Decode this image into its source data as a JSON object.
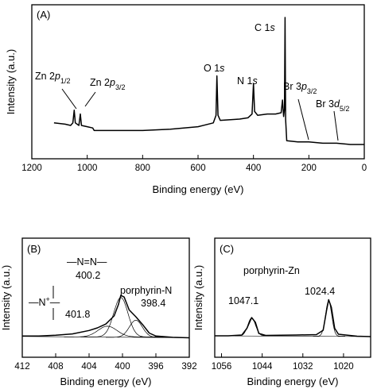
{
  "chart_data": [
    {
      "panel": "(A)",
      "type": "line",
      "xlabel": "Binding energy (eV)",
      "ylabel": "Intensity (a.u.)",
      "xlim": [
        1200,
        0
      ],
      "x_ticks": [
        "1200",
        "1000",
        "800",
        "600",
        "400",
        "200",
        "0"
      ],
      "series": [
        {
          "points": [
            [
              1120,
              0.17
            ],
            [
              1080,
              0.16
            ],
            [
              1060,
              0.15
            ],
            [
              1052,
              0.17
            ],
            [
              1047,
              0.27
            ],
            [
              1043,
              0.17
            ],
            [
              1030,
              0.15
            ],
            [
              1025,
              0.24
            ],
            [
              1021,
              0.15
            ],
            [
              1000,
              0.14
            ],
            [
              980,
              0.13
            ],
            [
              975,
              0.11
            ],
            [
              900,
              0.11
            ],
            [
              800,
              0.11
            ],
            [
              700,
              0.12
            ],
            [
              600,
              0.14
            ],
            [
              545,
              0.17
            ],
            [
              535,
              0.23
            ],
            [
              532,
              0.54
            ],
            [
              528,
              0.23
            ],
            [
              520,
              0.19
            ],
            [
              450,
              0.2
            ],
            [
              420,
              0.21
            ],
            [
              405,
              0.24
            ],
            [
              400,
              0.48
            ],
            [
              396,
              0.26
            ],
            [
              385,
              0.23
            ],
            [
              350,
              0.24
            ],
            [
              320,
              0.24
            ],
            [
              300,
              0.25
            ],
            [
              295,
              0.35
            ],
            [
              291,
              0.22
            ],
            [
              288,
              0.28
            ],
            [
              286,
              1.0
            ],
            [
              284,
              0.2
            ],
            [
              280,
              0.03
            ],
            [
              240,
              0.02
            ],
            [
              200,
              0.02
            ],
            [
              150,
              0.01
            ],
            [
              100,
              0.01
            ],
            [
              50,
              0.0
            ],
            [
              0,
              0.0
            ]
          ]
        }
      ],
      "annotations": [
        {
          "html": "Zn 2<i>p</i><sub>1/2</sub>"
        },
        {
          "html": "Zn 2<i>p</i><sub>3/2</sub>"
        },
        {
          "html": "O 1<i>s</i>"
        },
        {
          "html": "N 1<i>s</i>"
        },
        {
          "html": "C 1<i>s</i>"
        },
        {
          "html": "Br 3<i>p</i><sub>3/2</sub>"
        },
        {
          "html": "Br 3<i>d</i><sub>5/2</sub>"
        }
      ]
    },
    {
      "panel": "(B)",
      "type": "line",
      "xlabel": "Binding energy (eV)",
      "ylabel": "Intensity (a.u.)",
      "xlim": [
        412,
        392
      ],
      "x_ticks": [
        "412",
        "408",
        "404",
        "400",
        "396",
        "392"
      ],
      "series": [
        {
          "points": [
            [
              412,
              0.05
            ],
            [
              410,
              0.05
            ],
            [
              408,
              0.07
            ],
            [
              406,
              0.1
            ],
            [
              404,
              0.18
            ],
            [
              403,
              0.24
            ],
            [
              402,
              0.33
            ],
            [
              401,
              0.52
            ],
            [
              400.5,
              0.78
            ],
            [
              400.2,
              1.0
            ],
            [
              399.8,
              0.96
            ],
            [
              399.2,
              0.66
            ],
            [
              398.4,
              0.5
            ],
            [
              397.6,
              0.32
            ],
            [
              396.8,
              0.12
            ],
            [
              396,
              0.05
            ],
            [
              394,
              0.02
            ],
            [
              392,
              0.01
            ]
          ]
        }
      ],
      "annotations": [
        {
          "text": "—N=N—"
        },
        {
          "text": "400.2"
        },
        {
          "text": "porphyrin-N"
        },
        {
          "text": "398.4"
        },
        {
          "html": "—N<tspan baseline-shift='super' font-size='9'>+</tspan>—"
        },
        {
          "text": "401.8"
        }
      ]
    },
    {
      "panel": "(C)",
      "type": "line",
      "xlabel": "Binding energy (eV)",
      "ylabel": "Intensity (a.u.)",
      "xlim": [
        1058,
        1012
      ],
      "x_ticks": [
        "1056",
        "1044",
        "1032",
        "1020"
      ],
      "series": [
        {
          "points": [
            [
              1058,
              0.06
            ],
            [
              1054,
              0.06
            ],
            [
              1050,
              0.08
            ],
            [
              1048.5,
              0.25
            ],
            [
              1047.1,
              0.52
            ],
            [
              1046,
              0.4
            ],
            [
              1045,
              0.12
            ],
            [
              1043,
              0.07
            ],
            [
              1034,
              0.08
            ],
            [
              1028,
              0.09
            ],
            [
              1026,
              0.2
            ],
            [
              1025,
              0.7
            ],
            [
              1024.4,
              0.97
            ],
            [
              1023.6,
              0.78
            ],
            [
              1022.6,
              0.25
            ],
            [
              1021.5,
              0.1
            ],
            [
              1016,
              0.05
            ],
            [
              1012,
              0.04
            ]
          ]
        }
      ],
      "annotations": [
        {
          "text": "porphyrin-Zn"
        },
        {
          "text": "1047.1"
        },
        {
          "text": "1024.4"
        }
      ]
    }
  ]
}
